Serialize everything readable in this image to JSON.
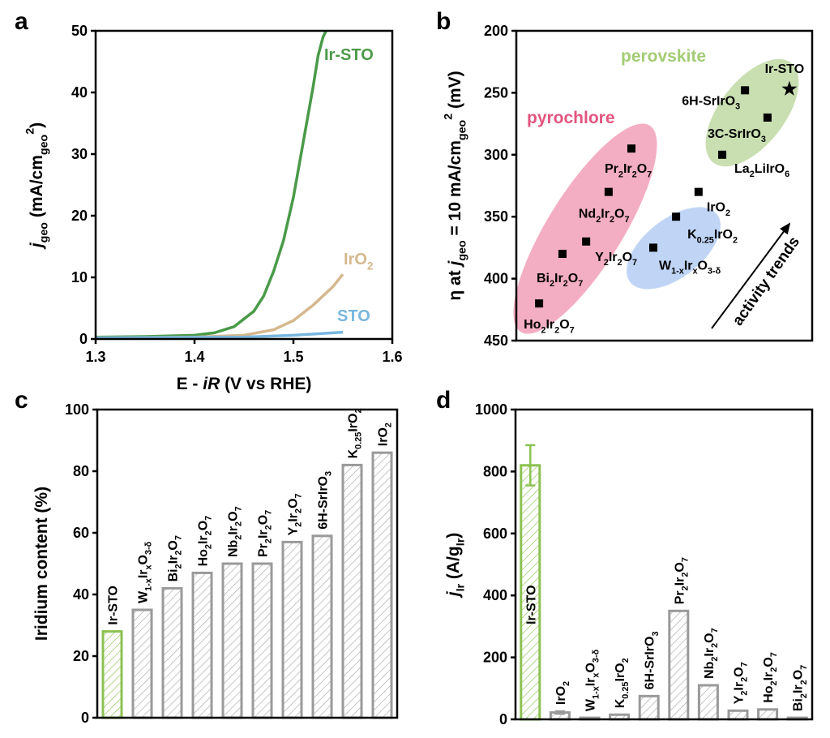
{
  "colors": {
    "irsto": "#4a9a48",
    "iro2": "#d5b88e",
    "sto": "#79b6de",
    "pyro": "#f2a0b8",
    "pyro_text": "#e2557e",
    "blue_group": "#b9d0f5",
    "perov": "#c3dba8",
    "perov_text": "#a3cc75",
    "bar_gray": "#9a9a9a",
    "bar_green": "#8cc152"
  },
  "chart_data": [
    {
      "panel": "a",
      "type": "line",
      "xlabel": "E - *iR* (V vs RHE)",
      "ylabel": "*j*_{geo} (mA/cm_{geo}^{2})",
      "xlim": [
        1.3,
        1.6
      ],
      "ylim": [
        0,
        50
      ],
      "xticks": [
        "1.3",
        "1.4",
        "1.5",
        "1.6"
      ],
      "yticks": [
        "0",
        "10",
        "20",
        "30",
        "40",
        "50"
      ],
      "series": [
        {
          "name": "Ir-STO",
          "color_key": "irsto",
          "x": [
            1.3,
            1.35,
            1.4,
            1.42,
            1.44,
            1.46,
            1.47,
            1.48,
            1.49,
            1.5,
            1.51,
            1.52,
            1.525,
            1.53,
            1.533
          ],
          "y": [
            0.3,
            0.4,
            0.6,
            1.0,
            2.0,
            4.5,
            7,
            11,
            16,
            23,
            32,
            41,
            46,
            49,
            50
          ]
        },
        {
          "name": "IrO_{2}",
          "color_key": "iro2",
          "x": [
            1.3,
            1.4,
            1.45,
            1.48,
            1.5,
            1.52,
            1.54,
            1.55
          ],
          "y": [
            0.2,
            0.3,
            0.6,
            1.5,
            3,
            5.5,
            8.5,
            10.5
          ]
        },
        {
          "name": "STO",
          "color_key": "sto",
          "x": [
            1.3,
            1.45,
            1.5,
            1.55
          ],
          "y": [
            0.2,
            0.3,
            0.6,
            1.1
          ]
        }
      ]
    },
    {
      "panel": "b",
      "type": "scatter",
      "ylabel": "η at *j*_{geo} = 10 mA/cm_{geo}^{2} (mV)",
      "ylim": [
        450,
        200
      ],
      "yticks": [
        "200",
        "250",
        "300",
        "350",
        "400",
        "450"
      ],
      "xlim": [
        0,
        100
      ],
      "groups": [
        "pyrochlore",
        "perovskite"
      ],
      "annotation": "activity trends",
      "points": [
        {
          "label": "Ir-STO",
          "x": 92.3,
          "y": 247,
          "marker": "star"
        },
        {
          "label": "6H-SrIrO_{3}",
          "x": 77.3,
          "y": 248,
          "marker": "square"
        },
        {
          "label": "3C-SrIrO_{3}",
          "x": 84.9,
          "y": 270,
          "marker": "square"
        },
        {
          "label": "La_{2}LiIrO_{6}",
          "x": 69.6,
          "y": 300,
          "marker": "square"
        },
        {
          "label": "Pr_{2}Ir_{2}O_{7}",
          "x": 38.9,
          "y": 295,
          "marker": "square"
        },
        {
          "label": "Nd_{2}Ir_{2}O_{7}",
          "x": 31.2,
          "y": 330,
          "marker": "square"
        },
        {
          "label": "Y_{2}Ir_{2}O_{7}",
          "x": 23.6,
          "y": 370,
          "marker": "square"
        },
        {
          "label": "Bi_{2}Ir_{2}O_{7}",
          "x": 15.6,
          "y": 380,
          "marker": "square"
        },
        {
          "label": "Ho_{2}Ir_{2}O_{7}",
          "x": 7.7,
          "y": 420,
          "marker": "square"
        },
        {
          "label": "IrO_{2}",
          "x": 61.6,
          "y": 330,
          "marker": "square"
        },
        {
          "label": "K_{0.25}IrO_{2}",
          "x": 54.0,
          "y": 350,
          "marker": "square"
        },
        {
          "label": "W_{1-x}Ir_{x}O_{3-δ}",
          "x": 46.3,
          "y": 375,
          "marker": "square"
        }
      ]
    },
    {
      "panel": "c",
      "type": "bar",
      "ylabel": "Iridium content (%)",
      "ylim": [
        0,
        100
      ],
      "yticks": [
        "0",
        "20",
        "40",
        "60",
        "80",
        "100"
      ],
      "categories": [
        "Ir-STO",
        "W_{1-x}Ir_{x}O_{3-δ}",
        "Bi_{2}Ir_{2}O_{7}",
        "Ho_{2}Ir_{2}O_{7}",
        "Nb_{2}Ir_{2}O_{7}",
        "Pr_{2}Ir_{2}O_{7}",
        "Y_{2}Ir_{2}O_{7}",
        "6H-SrIrO_{3}",
        "K_{0.25}IrO_{2}",
        "IrO_{2}"
      ],
      "values": [
        28,
        35,
        42,
        47,
        50,
        50,
        57,
        59,
        82,
        86
      ]
    },
    {
      "panel": "d",
      "type": "bar",
      "ylabel": "*j*_{Ir} (A/g_{Ir})",
      "ylim": [
        0,
        1000
      ],
      "yticks": [
        "0",
        "200",
        "400",
        "600",
        "800",
        "1000"
      ],
      "categories": [
        "Ir-STO",
        "IrO_{2}",
        "W_{1-x}Ir_{x}O_{3-δ}",
        "K_{0.25}IrO_{2}",
        "6H-SrIrO_{3}",
        "Pr_{2}Ir_{2}O_{7}",
        "Nb_{2}Ir_{2}O_{7}",
        "Y_{2}Ir_{2}O_{7}",
        "Ho_{2}Ir_{2}O_{7}",
        "Bi_{2}Ir_{2}O_{7}"
      ],
      "values": [
        820,
        22,
        5,
        15,
        75,
        350,
        110,
        28,
        32,
        5
      ],
      "errors": [
        65,
        4,
        0,
        0,
        0,
        0,
        0,
        0,
        0,
        0
      ]
    }
  ],
  "panel_letters": [
    "a",
    "b",
    "c",
    "d"
  ]
}
